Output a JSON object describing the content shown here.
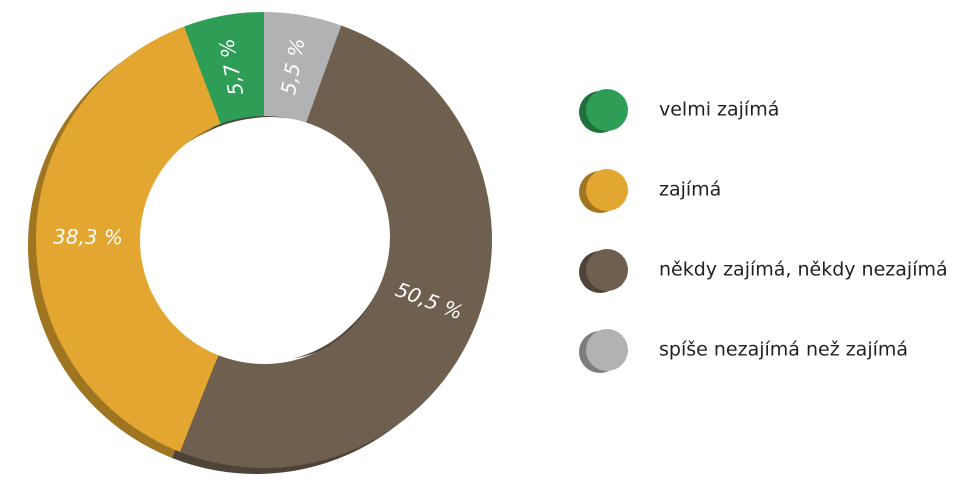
{
  "chart_data": {
    "type": "donut",
    "categories": [
      "velmi zajímá",
      "zajímá",
      "někdy zajímá, někdy nezajímá",
      "spíše nezajímá než zajímá"
    ],
    "values": [
      5.7,
      38.3,
      50.5,
      5.5
    ],
    "value_labels": [
      "5,7 %",
      "38,3 %",
      "50,5 %",
      "5,5 %"
    ],
    "colors": [
      "#2e9e57",
      "#e3a731",
      "#6f5f4e",
      "#b1b2b4"
    ]
  }
}
